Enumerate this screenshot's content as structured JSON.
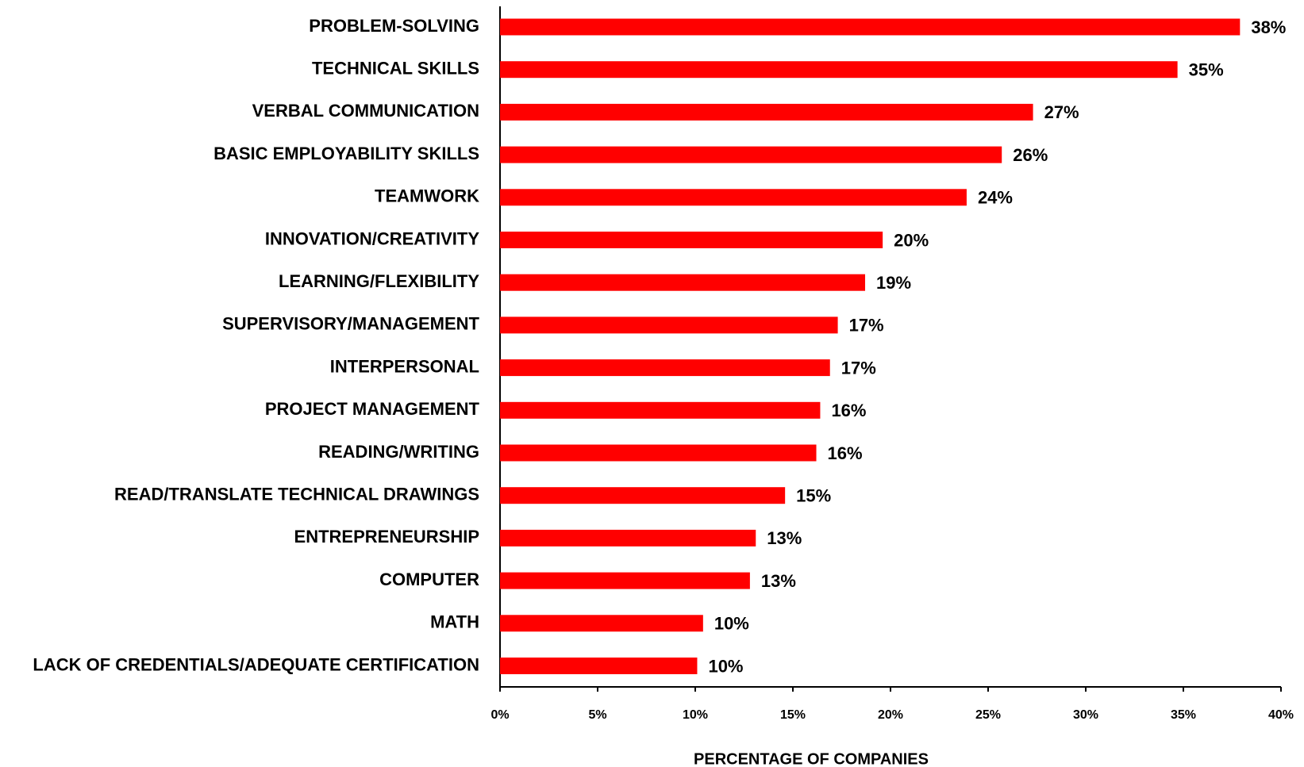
{
  "chart_data": {
    "type": "barh",
    "categories": [
      "PROBLEM-SOLVING",
      "TECHNICAL SKILLS",
      "VERBAL COMMUNICATION",
      "BASIC EMPLOYABILITY SKILLS",
      "TEAMWORK",
      "INNOVATION/CREATIVITY",
      "LEARNING/FLEXIBILITY",
      "SUPERVISORY/MANAGEMENT",
      "INTERPERSONAL",
      "PROJECT MANAGEMENT",
      "READING/WRITING",
      "READ/TRANSLATE TECHNICAL DRAWINGS",
      "ENTREPRENEURSHIP",
      "COMPUTER",
      "MATH",
      "LACK OF CREDENTIALS/ADEQUATE CERTIFICATION"
    ],
    "values": [
      37.9,
      34.7,
      27.3,
      25.7,
      23.9,
      19.6,
      18.7,
      17.3,
      16.9,
      16.4,
      16.2,
      14.6,
      13.1,
      12.8,
      10.4,
      10.1
    ],
    "value_labels": [
      "38%",
      "35%",
      "27%",
      "26%",
      "24%",
      "20%",
      "19%",
      "17%",
      "17%",
      "16%",
      "16%",
      "15%",
      "13%",
      "13%",
      "10%",
      "10%"
    ],
    "color": "#ff0000",
    "xlim": [
      0,
      40
    ],
    "xticks": [
      {
        "value": 0,
        "label": "0%"
      },
      {
        "value": 5,
        "label": "5%"
      },
      {
        "value": 10,
        "label": "10%"
      },
      {
        "value": 15,
        "label": "15%"
      },
      {
        "value": 20,
        "label": "20%"
      },
      {
        "value": 25,
        "label": "25%"
      },
      {
        "value": 30,
        "label": "30%"
      },
      {
        "value": 35,
        "label": "35%"
      },
      {
        "value": 40,
        "label": "40%"
      }
    ],
    "xlabel": "PERCENTAGE OF COMPANIES",
    "grid": false
  }
}
